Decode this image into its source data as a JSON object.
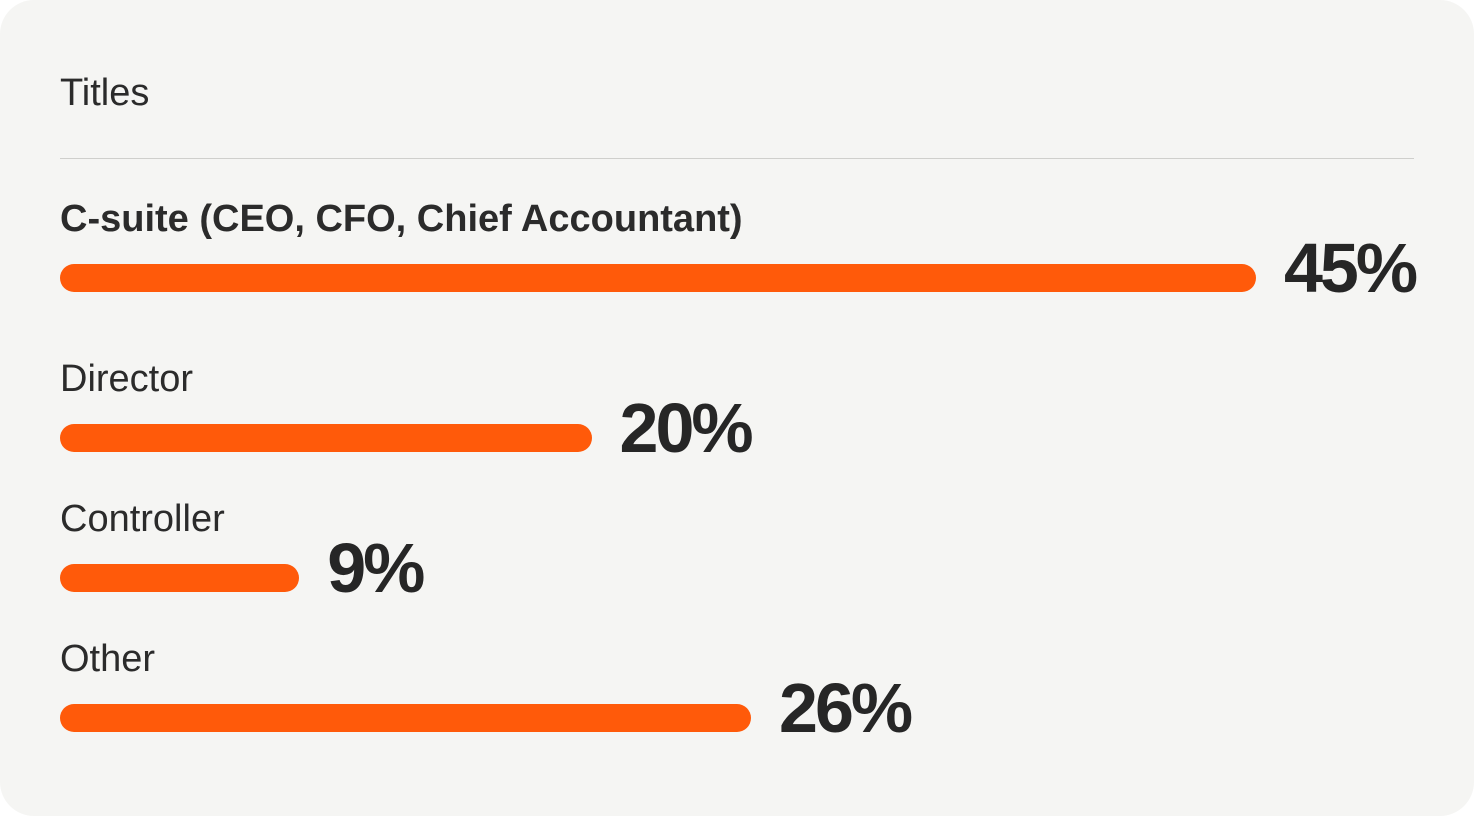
{
  "card": {
    "title": "Titles"
  },
  "colors": {
    "bar": "#ff5a0a",
    "background": "#f5f5f3",
    "text": "#262626"
  },
  "chart_data": {
    "type": "bar",
    "orientation": "horizontal",
    "categories": [
      "C-suite (CEO, CFO, Chief Accountant)",
      "Director",
      "Controller",
      "Other"
    ],
    "values": [
      45,
      20,
      9,
      26
    ],
    "value_labels": [
      "45%",
      "20%",
      "9%",
      "26%"
    ],
    "unit": "%",
    "grid": false,
    "legend": "none"
  }
}
